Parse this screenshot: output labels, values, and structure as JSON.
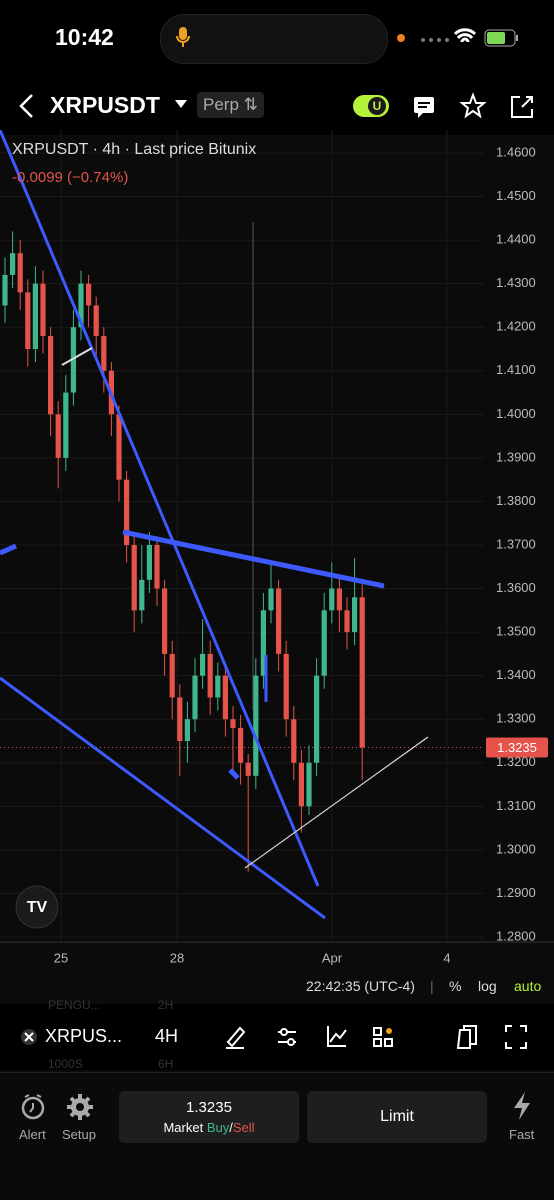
{
  "status_bar": {
    "time": "10:42"
  },
  "header": {
    "symbol": "XRPUSDT",
    "market": "Perp"
  },
  "chart": {
    "legend": "XRPUSDT · 4h · Last price Bitunix",
    "change": "-0.0099 (−0.74%)",
    "ylim": [
      1.28,
      1.46
    ],
    "yticks": [
      {
        "value": 1.46,
        "label": "1.4600"
      },
      {
        "value": 1.45,
        "label": "1.4500"
      },
      {
        "value": 1.44,
        "label": "1.4400"
      },
      {
        "value": 1.43,
        "label": "1.4300"
      },
      {
        "value": 1.42,
        "label": "1.4200"
      },
      {
        "value": 1.41,
        "label": "1.4100"
      },
      {
        "value": 1.4,
        "label": "1.4000"
      },
      {
        "value": 1.39,
        "label": "1.3900"
      },
      {
        "value": 1.38,
        "label": "1.3800"
      },
      {
        "value": 1.37,
        "label": "1.3700"
      },
      {
        "value": 1.36,
        "label": "1.3600"
      },
      {
        "value": 1.35,
        "label": "1.3500"
      },
      {
        "value": 1.34,
        "label": "1.3400"
      },
      {
        "value": 1.33,
        "label": "1.3300"
      },
      {
        "value": 1.32,
        "label": "1.3200"
      },
      {
        "value": 1.31,
        "label": "1.3100"
      },
      {
        "value": 1.3,
        "label": "1.3000"
      },
      {
        "value": 1.29,
        "label": "1.2900"
      },
      {
        "value": 1.28,
        "label": "1.2800"
      }
    ],
    "xlabels": [
      "25",
      "28",
      "Apr",
      "4"
    ],
    "last_price": 1.3235,
    "up_color": "#3fb68b",
    "down_color": "#e5534b",
    "candles": [
      [
        1.425,
        1.436,
        1.421,
        1.432
      ],
      [
        1.432,
        1.442,
        1.429,
        1.437
      ],
      [
        1.437,
        1.44,
        1.424,
        1.428
      ],
      [
        1.428,
        1.431,
        1.411,
        1.415
      ],
      [
        1.415,
        1.434,
        1.412,
        1.43
      ],
      [
        1.43,
        1.433,
        1.414,
        1.418
      ],
      [
        1.418,
        1.42,
        1.395,
        1.4
      ],
      [
        1.4,
        1.403,
        1.383,
        1.39
      ],
      [
        1.39,
        1.409,
        1.387,
        1.405
      ],
      [
        1.405,
        1.424,
        1.402,
        1.42
      ],
      [
        1.42,
        1.433,
        1.417,
        1.43
      ],
      [
        1.43,
        1.432,
        1.42,
        1.425
      ],
      [
        1.425,
        1.427,
        1.413,
        1.418
      ],
      [
        1.418,
        1.42,
        1.405,
        1.41
      ],
      [
        1.41,
        1.412,
        1.395,
        1.4
      ],
      [
        1.4,
        1.402,
        1.38,
        1.385
      ],
      [
        1.385,
        1.387,
        1.366,
        1.37
      ],
      [
        1.37,
        1.373,
        1.35,
        1.355
      ],
      [
        1.355,
        1.37,
        1.352,
        1.362
      ],
      [
        1.362,
        1.373,
        1.359,
        1.37
      ],
      [
        1.37,
        1.372,
        1.356,
        1.36
      ],
      [
        1.36,
        1.362,
        1.34,
        1.345
      ],
      [
        1.345,
        1.348,
        1.33,
        1.335
      ],
      [
        1.335,
        1.338,
        1.317,
        1.325
      ],
      [
        1.325,
        1.334,
        1.32,
        1.33
      ],
      [
        1.33,
        1.344,
        1.327,
        1.34
      ],
      [
        1.34,
        1.353,
        1.337,
        1.345
      ],
      [
        1.345,
        1.348,
        1.331,
        1.335
      ],
      [
        1.335,
        1.343,
        1.332,
        1.34
      ],
      [
        1.34,
        1.342,
        1.326,
        1.33
      ],
      [
        1.33,
        1.333,
        1.318,
        1.328
      ],
      [
        1.328,
        1.331,
        1.315,
        1.32
      ],
      [
        1.32,
        1.322,
        1.295,
        1.317
      ],
      [
        1.317,
        1.344,
        1.314,
        1.34
      ],
      [
        1.34,
        1.359,
        1.337,
        1.355
      ],
      [
        1.355,
        1.366,
        1.352,
        1.36
      ],
      [
        1.36,
        1.362,
        1.341,
        1.345
      ],
      [
        1.345,
        1.348,
        1.326,
        1.33
      ],
      [
        1.33,
        1.333,
        1.316,
        1.32
      ],
      [
        1.32,
        1.323,
        1.304,
        1.31
      ],
      [
        1.31,
        1.324,
        1.308,
        1.32
      ],
      [
        1.32,
        1.344,
        1.317,
        1.34
      ],
      [
        1.34,
        1.359,
        1.337,
        1.355
      ],
      [
        1.355,
        1.366,
        1.352,
        1.36
      ],
      [
        1.36,
        1.363,
        1.35,
        1.355
      ],
      [
        1.355,
        1.358,
        1.346,
        1.35
      ],
      [
        1.35,
        1.367,
        1.347,
        1.358
      ],
      [
        1.358,
        1.361,
        1.316,
        1.3235
      ]
    ]
  },
  "time_bar": {
    "clock": "22:42:35 (UTC-4)",
    "percent": "%",
    "log": "log",
    "auto": "auto"
  },
  "toolbar": {
    "symbol": "XRPUS...",
    "interval": "4H",
    "ghost_1": "PENGU...",
    "ghost_1b": "2H",
    "ghost_2": "1000S",
    "ghost_2b": "6H"
  },
  "bottom": {
    "alert": "Alert",
    "setup": "Setup",
    "price_button": "Market",
    "buy": "Buy",
    "slash": "/",
    "sell": "Sell",
    "limit": "Limit",
    "fast": "Fast"
  }
}
